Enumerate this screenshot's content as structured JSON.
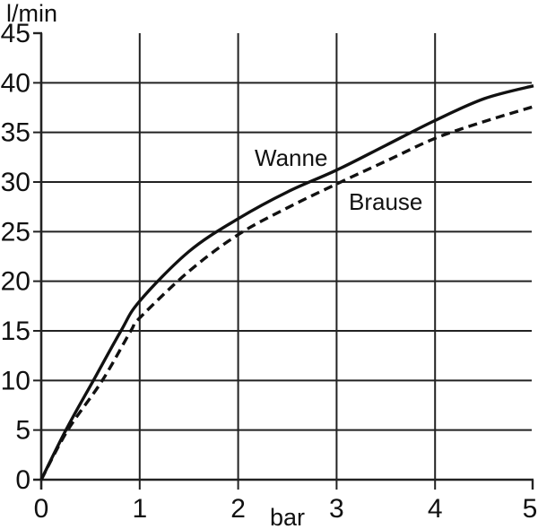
{
  "chart_data": {
    "type": "line",
    "title": "",
    "xlabel": "bar",
    "ylabel": "l/min",
    "xlim": [
      0,
      5
    ],
    "ylim": [
      0,
      45
    ],
    "x_ticks": [
      0,
      1,
      2,
      3,
      4,
      5
    ],
    "y_ticks": [
      0,
      5,
      10,
      15,
      20,
      25,
      30,
      35,
      40,
      45
    ],
    "grid": "on",
    "legend_position": "inline-annotations",
    "series": [
      {
        "name": "Wanne",
        "style": "solid",
        "points": [
          [
            0,
            0
          ],
          [
            0.25,
            5
          ],
          [
            0.53,
            10
          ],
          [
            0.81,
            15
          ],
          [
            1,
            18
          ],
          [
            1.5,
            23
          ],
          [
            2,
            26.3
          ],
          [
            2.5,
            29
          ],
          [
            3,
            31.2
          ],
          [
            3.5,
            33.7
          ],
          [
            4,
            36.2
          ],
          [
            4.5,
            38.4
          ],
          [
            5,
            39.7
          ]
        ]
      },
      {
        "name": "Brause",
        "style": "dashed",
        "points": [
          [
            0,
            0
          ],
          [
            0.27,
            5
          ],
          [
            0.62,
            10
          ],
          [
            0.91,
            15
          ],
          [
            1,
            16.3
          ],
          [
            1.5,
            21
          ],
          [
            2,
            24.7
          ],
          [
            2.5,
            27.4
          ],
          [
            3,
            29.8
          ],
          [
            3.5,
            32.1
          ],
          [
            4,
            34.4
          ],
          [
            4.5,
            36.1
          ],
          [
            5,
            37.6
          ]
        ]
      }
    ],
    "annotations": [
      {
        "text": "Wanne"
      },
      {
        "text": "Brause"
      }
    ],
    "colors": {
      "line": "#111111",
      "grid": "#222222",
      "background": "#ffffff"
    }
  }
}
